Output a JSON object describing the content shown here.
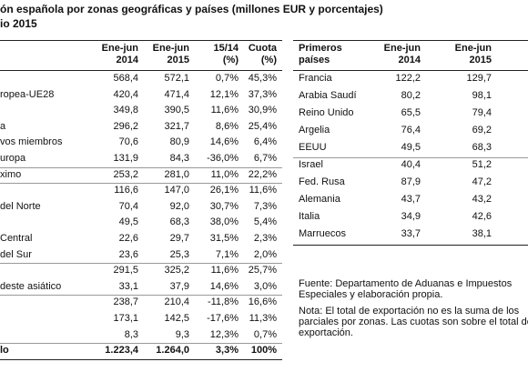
{
  "title": {
    "line1": "ón española por zonas geográficas y países (millones EUR y porcentajes)",
    "line2": "io 2015"
  },
  "left_table": {
    "headers": [
      [
        "Ene-jun",
        "2014"
      ],
      [
        "Ene-jun",
        "2015"
      ],
      [
        "15/14",
        "(%)"
      ],
      [
        "Cuota",
        "(%)"
      ]
    ],
    "rows": [
      [
        null,
        "568,4",
        "572,1",
        "0,7%",
        "45,3%"
      ],
      [
        "ropea-UE28",
        "420,4",
        "471,4",
        "12,1%",
        "37,3%"
      ],
      [
        null,
        "349,8",
        "390,5",
        "11,6%",
        "30,9%"
      ],
      [
        "a",
        "296,2",
        "321,7",
        "8,6%",
        "25,4%"
      ],
      [
        "vos miembros",
        "70,6",
        "80,9",
        "14,6%",
        "6,4%"
      ],
      [
        "uropa",
        "131,9",
        "84,3",
        "-36,0%",
        "6,7%"
      ],
      [
        "ximo",
        "253,2",
        "281,0",
        "11,0%",
        "22,2%"
      ],
      [
        null,
        "116,6",
        "147,0",
        "26,1%",
        "11,6%"
      ],
      [
        "del Norte",
        "70,4",
        "92,0",
        "30,7%",
        "7,3%"
      ],
      [
        null,
        "49,5",
        "68,3",
        "38,0%",
        "5,4%"
      ],
      [
        "Central",
        "22,6",
        "29,7",
        "31,5%",
        "2,3%"
      ],
      [
        "del Sur",
        "23,6",
        "25,3",
        "7,1%",
        "2,0%"
      ],
      [
        null,
        "291,5",
        "325,2",
        "11,6%",
        "25,7%"
      ],
      [
        "deste asiático",
        "33,1",
        "37,9",
        "14,6%",
        "3,0%"
      ],
      [
        null,
        "238,7",
        "210,4",
        "-11,8%",
        "16,6%"
      ],
      [
        null,
        "173,1",
        "142,5",
        "-17,6%",
        "11,3%"
      ],
      [
        null,
        "8,3",
        "9,3",
        "12,3%",
        "0,7%"
      ],
      [
        "lo",
        "1.223,4",
        "1.264,0",
        "3,3%",
        "100%"
      ]
    ]
  },
  "right_table": {
    "headers": [
      [
        "Primeros",
        "países"
      ],
      [
        "Ene-jun",
        "2014"
      ],
      [
        "Ene-jun",
        "2015"
      ]
    ],
    "rows": [
      [
        "Francia",
        "122,2",
        "129,7"
      ],
      [
        "Arabia Saudí",
        "80,2",
        "98,1"
      ],
      [
        "Reino Unido",
        "65,5",
        "79,4"
      ],
      [
        "Argelia",
        "76,4",
        "69,2"
      ],
      [
        "EEUU",
        "49,5",
        "68,3"
      ],
      [
        "Israel",
        "40,4",
        "51,2"
      ],
      [
        "Fed. Rusa",
        "87,9",
        "47,2"
      ],
      [
        "Alemania",
        "43,7",
        "43,2"
      ],
      [
        "Italia",
        "34,9",
        "42,6"
      ],
      [
        "Marruecos",
        "33,7",
        "38,1"
      ]
    ]
  },
  "notes": {
    "source": [
      "Fuente: Departamento de Aduanas e Impuestos",
      "Especiales y elaboración propia."
    ],
    "note": [
      "Nota: El total de exportación no es la suma de los",
      "parciales por zonas. Las cuotas son sobre el total de",
      "exportación."
    ]
  }
}
